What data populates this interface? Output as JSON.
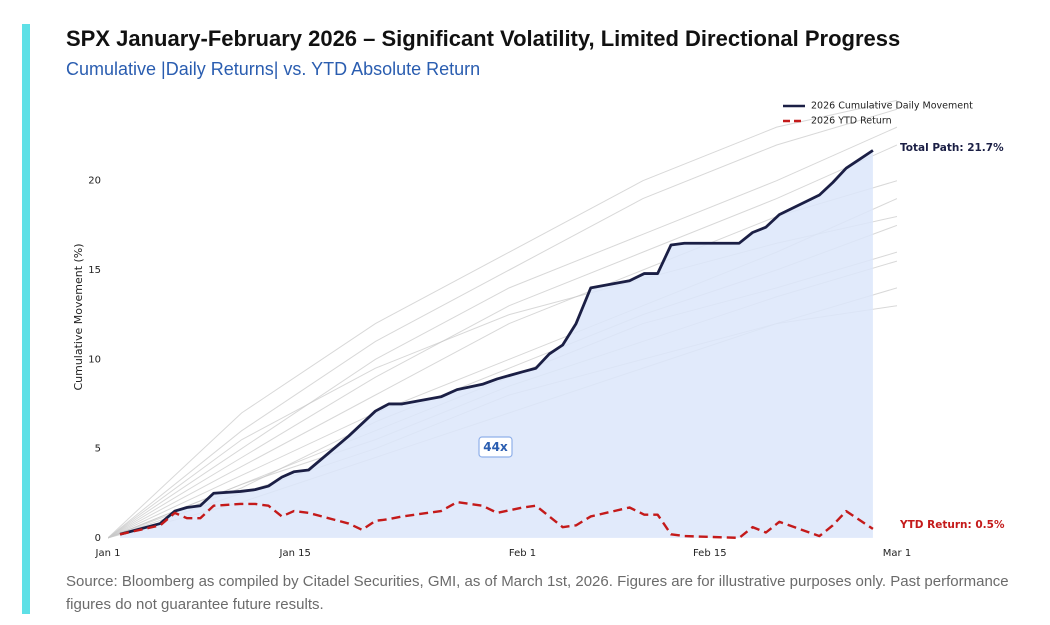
{
  "chart_data": {
    "type": "line",
    "title": "SPX January-February 2026 – Significant Volatility, Limited Directional Progress",
    "subtitle": "Cumulative |Daily Returns| vs. YTD Absolute Return",
    "y_label": "Cumulative Movement (%)",
    "source": "Source: Bloomberg as compiled by Citadel Securities, GMI, as of March 1st, 2026. Figures are for illustrative purposes only. Past performance figures do not guarantee future results.",
    "x": [
      0.9,
      3.9,
      5.0,
      5.9,
      6.9,
      7.9,
      9.9,
      11.0,
      12.0,
      13.0,
      13.9,
      15.0,
      18.0,
      19.0,
      20.0,
      21.0,
      22.0,
      24.9,
      26.1,
      28.0,
      29.1,
      31.0,
      32.0,
      33.0,
      34.0,
      35.0,
      36.1,
      39.0,
      40.1,
      41.1,
      42.1,
      43.1,
      47.2,
      48.2,
      49.2,
      50.2,
      53.2,
      54.2,
      55.2,
      56.2,
      57.2
    ],
    "series": [
      {
        "name": "2026 Cumulative Daily Movement",
        "color": "#1b1f45",
        "style": "solid",
        "values": [
          0.2,
          0.8,
          1.5,
          1.7,
          1.8,
          2.5,
          2.6,
          2.7,
          2.9,
          3.4,
          3.7,
          3.8,
          5.7,
          6.4,
          7.1,
          7.5,
          7.5,
          7.9,
          8.3,
          8.6,
          8.9,
          9.3,
          9.5,
          10.3,
          10.8,
          12.0,
          14.0,
          14.4,
          14.8,
          14.8,
          16.4,
          16.5,
          16.5,
          17.1,
          17.4,
          18.1,
          19.2,
          19.9,
          20.7,
          21.2,
          21.7
        ]
      },
      {
        "name": "2026 YTD Return",
        "color": "#c41a1a",
        "style": "dashed",
        "values": [
          0.2,
          0.7,
          1.4,
          1.1,
          1.1,
          1.8,
          1.9,
          1.9,
          1.8,
          1.2,
          1.5,
          1.4,
          0.8,
          0.45,
          0.95,
          1.05,
          1.2,
          1.5,
          2.0,
          1.8,
          1.4,
          1.7,
          1.8,
          1.2,
          0.6,
          0.7,
          1.2,
          1.7,
          1.3,
          1.3,
          0.2,
          0.1,
          0.0,
          0.6,
          0.3,
          0.9,
          0.1,
          0.7,
          1.5,
          1.0,
          0.5
        ]
      }
    ],
    "background_series": {
      "color": "#c8c8c8",
      "x": [
        0,
        10,
        20,
        30,
        40,
        50,
        59
      ],
      "values": [
        [
          0,
          4,
          8,
          12,
          15,
          18,
          20
        ],
        [
          0,
          3,
          6,
          9,
          12,
          14,
          16
        ],
        [
          0,
          5,
          10,
          14,
          17,
          20,
          23
        ],
        [
          0,
          2.5,
          5,
          8,
          10,
          12,
          13
        ],
        [
          0,
          6,
          11,
          15,
          19,
          22,
          24
        ],
        [
          0,
          3.5,
          7,
          10,
          13,
          16,
          19
        ],
        [
          0,
          2,
          4.5,
          7,
          9.5,
          12,
          14
        ],
        [
          0,
          4.5,
          9,
          13,
          16,
          19,
          22
        ],
        [
          0,
          3,
          5.5,
          8.5,
          11,
          13.5,
          15.5
        ],
        [
          0,
          7,
          12,
          16,
          20,
          23,
          24.5
        ],
        [
          0,
          2.8,
          6.5,
          9.5,
          12.5,
          15,
          17.5
        ],
        [
          0,
          5.5,
          9.5,
          12.5,
          14.5,
          16.5,
          18
        ]
      ]
    },
    "annotations": {
      "end_label": "Total Path: 21.7%",
      "ytd_label": "YTD Return: 0.5%",
      "ratio_label": "44x"
    },
    "xlim": [
      0,
      59
    ],
    "xticks": [
      {
        "value": 0,
        "label": "Jan 1"
      },
      {
        "value": 14,
        "label": "Jan 15"
      },
      {
        "value": 31,
        "label": "Feb 1"
      },
      {
        "value": 45,
        "label": "Feb 15"
      },
      {
        "value": 59,
        "label": "Mar 1"
      }
    ],
    "ylim": [
      -0.4,
      24.8
    ],
    "yticks": [
      0,
      5,
      10,
      15,
      20
    ],
    "area_fill": "#dce6fa",
    "grid": false,
    "legend": "upper right"
  }
}
